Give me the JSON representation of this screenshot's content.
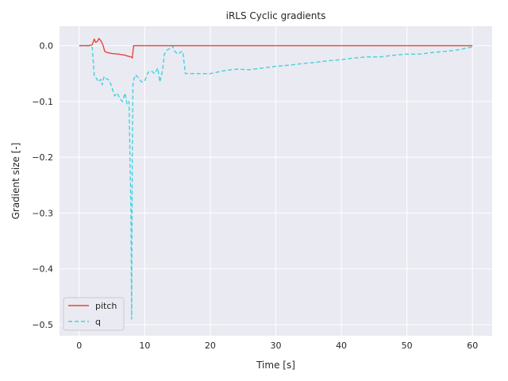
{
  "chart_data": {
    "type": "line",
    "title": "iRLS Cyclic gradients",
    "xlabel": "Time [s]",
    "ylabel": "Gradient size [-]",
    "xlim": [
      -3,
      63
    ],
    "ylim": [
      -0.52,
      0.035
    ],
    "xticks": [
      0,
      10,
      20,
      30,
      40,
      50,
      60
    ],
    "yticks": [
      0.0,
      -0.1,
      -0.2,
      -0.3,
      -0.4,
      -0.5
    ],
    "xtick_labels": [
      "0",
      "10",
      "20",
      "30",
      "40",
      "50",
      "60"
    ],
    "ytick_labels": [
      "0.0",
      "−0.1",
      "−0.2",
      "−0.3",
      "−0.4",
      "−0.5"
    ],
    "grid": true,
    "legend_position": "lower-left",
    "colors": {
      "background": "#eaeaf2",
      "grid": "#ffffff",
      "pitch": "#e24a3b",
      "q": "#3fd3dc"
    },
    "series": [
      {
        "name": "pitch",
        "style": "solid",
        "color": "#e24a3b",
        "x": [
          0,
          1.5,
          2.0,
          2.3,
          2.5,
          2.8,
          3.0,
          3.3,
          3.6,
          3.9,
          4.2,
          5.0,
          6.0,
          7.0,
          7.5,
          7.9,
          8.1,
          8.3,
          10,
          20,
          30,
          40,
          50,
          60
        ],
        "y": [
          0,
          0,
          0.002,
          0.012,
          0.006,
          0.008,
          0.013,
          0.009,
          0.002,
          -0.01,
          -0.012,
          -0.014,
          -0.015,
          -0.017,
          -0.019,
          -0.02,
          -0.022,
          0.0,
          0.0,
          0.0,
          0.0,
          0.0,
          0.0,
          0.0
        ]
      },
      {
        "name": "q",
        "style": "dashed",
        "color": "#3fd3dc",
        "x": [
          0,
          1.5,
          2.0,
          2.3,
          2.6,
          3.0,
          3.3,
          3.5,
          3.8,
          4.0,
          4.3,
          4.6,
          5.0,
          5.4,
          5.8,
          6.2,
          6.6,
          7.0,
          7.3,
          7.6,
          7.9,
          8.0,
          8.1,
          8.2,
          8.35,
          8.6,
          9.0,
          9.5,
          10.0,
          10.5,
          11.0,
          11.5,
          12.0,
          12.3,
          12.7,
          13.0,
          13.4,
          13.8,
          14.2,
          14.6,
          15.0,
          15.4,
          15.8,
          16.2,
          17,
          20,
          22,
          24,
          26,
          28,
          30,
          32,
          34,
          36,
          38,
          40,
          42,
          44,
          46,
          48,
          50,
          52,
          54,
          56,
          58,
          60
        ],
        "y": [
          0,
          0,
          -0.003,
          -0.055,
          -0.058,
          -0.065,
          -0.06,
          -0.07,
          -0.055,
          -0.058,
          -0.06,
          -0.062,
          -0.075,
          -0.09,
          -0.085,
          -0.095,
          -0.1,
          -0.085,
          -0.105,
          -0.1,
          -0.3,
          -0.49,
          -0.2,
          -0.07,
          -0.06,
          -0.052,
          -0.057,
          -0.065,
          -0.063,
          -0.048,
          -0.045,
          -0.05,
          -0.04,
          -0.065,
          -0.045,
          -0.015,
          -0.008,
          -0.005,
          0.0,
          -0.01,
          -0.015,
          -0.012,
          -0.01,
          -0.05,
          -0.05,
          -0.05,
          -0.045,
          -0.042,
          -0.043,
          -0.04,
          -0.037,
          -0.035,
          -0.032,
          -0.03,
          -0.027,
          -0.025,
          -0.022,
          -0.02,
          -0.02,
          -0.017,
          -0.015,
          -0.015,
          -0.012,
          -0.01,
          -0.007,
          -0.002
        ]
      }
    ]
  }
}
